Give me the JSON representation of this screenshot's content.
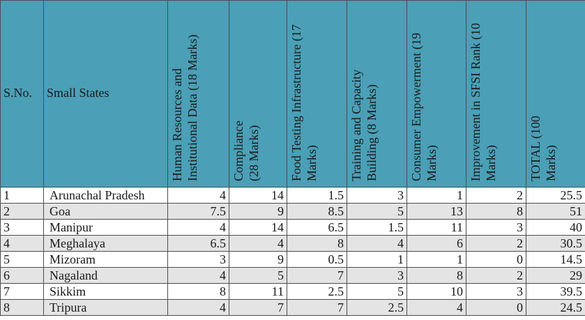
{
  "table": {
    "headers": [
      "S.No.",
      "Small States",
      "Human Resources and Institutional Data (18 Marks)",
      "Compliance (28 Marks)",
      "Food Testing Infrastructure (17 Marks)",
      "Training and Capacity Building (8 Marks)",
      "Consumer Empowerment (19 Marks)",
      "Improvement in SFSI Rank (10 Marks)",
      "TOTAL (100 Marks)"
    ],
    "rows": [
      [
        1,
        "Arunachal Pradesh",
        4,
        14,
        1.5,
        3,
        1,
        2,
        25.5
      ],
      [
        2,
        "Goa",
        7.5,
        9,
        8.5,
        5,
        13,
        8,
        51
      ],
      [
        3,
        "Manipur",
        4,
        14,
        6.5,
        1.5,
        11,
        3,
        40
      ],
      [
        4,
        "Meghalaya",
        6.5,
        4,
        8,
        4,
        6,
        2,
        30.5
      ],
      [
        5,
        "Mizoram",
        3,
        9,
        0.5,
        1,
        1,
        0,
        14.5
      ],
      [
        6,
        "Nagaland",
        4,
        5,
        7,
        3,
        8,
        2,
        29
      ],
      [
        7,
        "Sikkim",
        8,
        11,
        2.5,
        5,
        10,
        3,
        39.5
      ],
      [
        8,
        "Tripura",
        4,
        7,
        7,
        2.5,
        4,
        0,
        24.5
      ]
    ]
  }
}
